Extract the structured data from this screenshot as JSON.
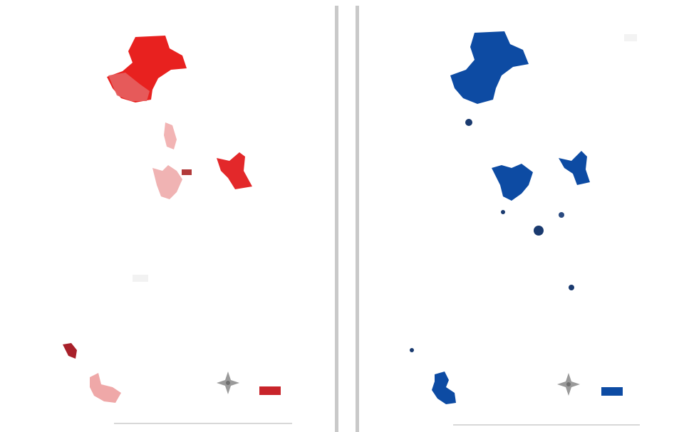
{
  "maps": [
    {
      "id": "left",
      "fill_color": "#e8211f",
      "legend": {
        "title": "",
        "entries": [
          ""
        ]
      },
      "scale_ticks": [
        "",
        "",
        "",
        "",
        ""
      ]
    },
    {
      "id": "right",
      "fill_color": "#0d4ba3",
      "legend": {
        "title": "",
        "entries": [
          ""
        ]
      },
      "scale_ticks": [
        "",
        "",
        "",
        "",
        ""
      ]
    }
  ],
  "colors": {
    "left_accent": "#e8211f",
    "right_accent": "#0d4ba3",
    "divider": "#c9c9c9"
  },
  "icons": [
    "compass-icon",
    "compass-icon"
  ]
}
